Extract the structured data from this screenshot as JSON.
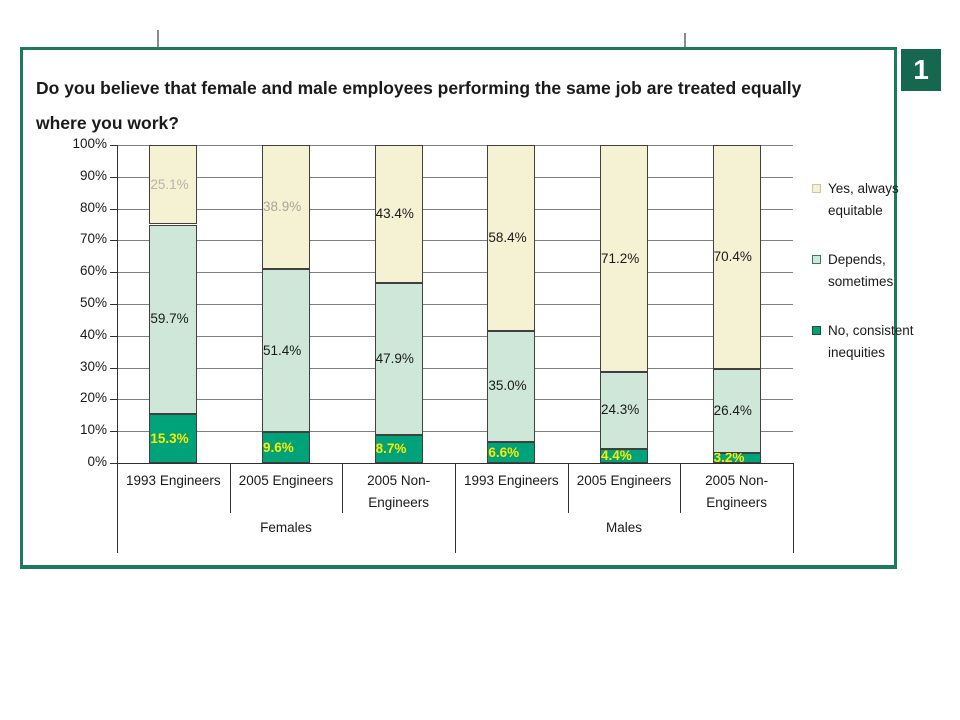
{
  "slide": {
    "title": "Do you believe that female and male employees performing the same job are treated equally where you work?",
    "page_number": "1"
  },
  "colors": {
    "frame_border": "#1E7A5F",
    "badge_background": "#15684E",
    "badge_text": "#FFFFFF",
    "gridline": "#7F7F7F",
    "axis": "#303030"
  },
  "chart_data": {
    "type": "bar",
    "stacked": true,
    "ylim": [
      0,
      100
    ],
    "grid": true,
    "y_ticks": [
      "0%",
      "10%",
      "20%",
      "30%",
      "40%",
      "50%",
      "60%",
      "70%",
      "80%",
      "90%",
      "100%"
    ],
    "categories": [
      "1993 Engineers",
      "2005 Engineers",
      "2005 Non-Engineers",
      "1993 Engineers",
      "2005 Engineers",
      "2005 Non-Engineers"
    ],
    "groups": [
      {
        "label": "Females",
        "span": 3
      },
      {
        "label": "Males",
        "span": 3
      }
    ],
    "series": [
      {
        "name": "No, consistent inequities",
        "color": "#00A279",
        "label_color": "#FFE900",
        "label_bold": true,
        "values": [
          15.3,
          9.6,
          8.7,
          6.6,
          4.4,
          3.2
        ]
      },
      {
        "name": "Depends, sometimes",
        "color": "#CEE7D9",
        "label_color": "#1A1A1A",
        "label_bold": false,
        "values": [
          59.7,
          51.4,
          47.9,
          35.0,
          24.3,
          26.4
        ]
      },
      {
        "name": "Yes, always equitable",
        "color": "#F5F1D3",
        "label_color": "#1A1A1A",
        "label_bold": false,
        "label_colors_per_bar": [
          "#B5B5A8",
          "#A6A699",
          "#1A1A1A",
          "#1A1A1A",
          "#1A1A1A",
          "#1A1A1A"
        ],
        "values": [
          25.1,
          38.9,
          43.4,
          58.4,
          71.2,
          70.4
        ]
      }
    ],
    "legend": {
      "position": "right",
      "entries": [
        {
          "label": "Yes, always equitable",
          "fill": "#F5F1D3",
          "border": "#C7C7A6"
        },
        {
          "label": "Depends, sometimes",
          "fill": "#CEE7D9",
          "border": "#2F7D5F"
        },
        {
          "label": "No, consistent inequities",
          "fill": "#0C9B73",
          "border": "#0B5740"
        }
      ]
    }
  }
}
